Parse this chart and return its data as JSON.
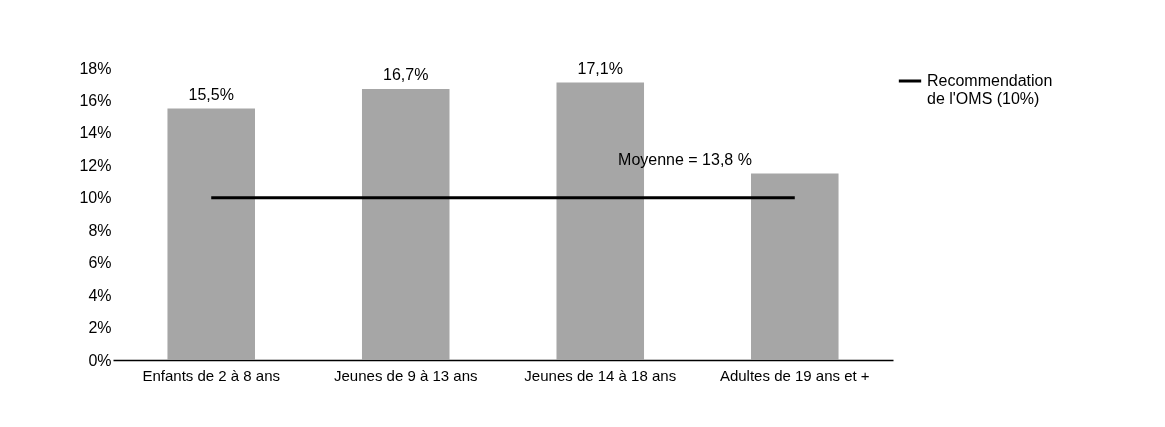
{
  "chart_data": {
    "type": "bar",
    "categories": [
      "Enfants de 2 à 8 ans",
      "Jeunes de 9 à 13 ans",
      "Jeunes de 14 à 18 ans",
      "Adultes de 19 ans et +"
    ],
    "series": [
      {
        "color": "#a6a6a6",
        "values": [
          15.5,
          16.7,
          17.1,
          11.5
        ],
        "value_labels": [
          "15,5%",
          "16,7%",
          "17,1%",
          null
        ]
      },
      {
        "type": "line",
        "name": "Recommendation de l'OMS (10%)",
        "color": "#000000",
        "values": [
          10,
          10,
          10,
          10
        ]
      }
    ],
    "ylim": [
      0,
      18
    ],
    "yticks": [
      {
        "value": 0,
        "label": "0%"
      },
      {
        "value": 2,
        "label": "2%"
      },
      {
        "value": 4,
        "label": "4%"
      },
      {
        "value": 6,
        "label": "6%"
      },
      {
        "value": 8,
        "label": "8%"
      },
      {
        "value": 10,
        "label": "10%"
      },
      {
        "value": 12,
        "label": "12%"
      },
      {
        "value": 14,
        "label": "14%"
      },
      {
        "value": 16,
        "label": "16%"
      },
      {
        "value": 18,
        "label": "18%"
      }
    ],
    "annotations": [
      "Moyenne = 13,8 %"
    ],
    "grid": false,
    "legend": "right",
    "line_style": "solid",
    "marker": "none"
  }
}
